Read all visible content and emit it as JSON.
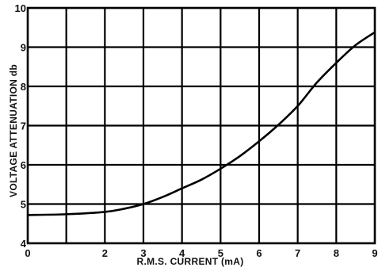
{
  "chart_data": {
    "type": "line",
    "xlabel": "R.M.S. CURRENT  (mA)",
    "ylabel": "VOLTAGE ATTENUATION db",
    "xlim": [
      0,
      9
    ],
    "ylim": [
      4,
      10
    ],
    "grid": true,
    "x_tick_labels": [
      {
        "value": 0,
        "label": "0"
      },
      {
        "value": 2,
        "label": "2"
      },
      {
        "value": 3,
        "label": "3"
      },
      {
        "value": 4,
        "label": "4"
      },
      {
        "value": 5,
        "label": "5"
      },
      {
        "value": 6,
        "label": "6"
      },
      {
        "value": 7,
        "label": "7"
      },
      {
        "value": 8,
        "label": "8"
      },
      {
        "value": 9,
        "label": "9"
      }
    ],
    "y_tick_labels": [
      {
        "value": 4,
        "label": "4"
      },
      {
        "value": 5,
        "label": "5"
      },
      {
        "value": 6,
        "label": "6"
      },
      {
        "value": 7,
        "label": "7"
      },
      {
        "value": 8,
        "label": "8"
      },
      {
        "value": 9,
        "label": "9"
      },
      {
        "value": 10,
        "label": "10"
      }
    ],
    "series": [
      {
        "x": [
          0,
          1,
          2,
          2.5,
          3,
          3.5,
          4,
          4.5,
          5,
          5.5,
          6,
          6.5,
          7,
          7.5,
          8,
          8.5,
          9
        ],
        "y": [
          4.72,
          4.74,
          4.8,
          4.88,
          5.0,
          5.18,
          5.4,
          5.62,
          5.9,
          6.22,
          6.6,
          7.02,
          7.5,
          8.1,
          8.6,
          9.05,
          9.38
        ]
      }
    ]
  }
}
